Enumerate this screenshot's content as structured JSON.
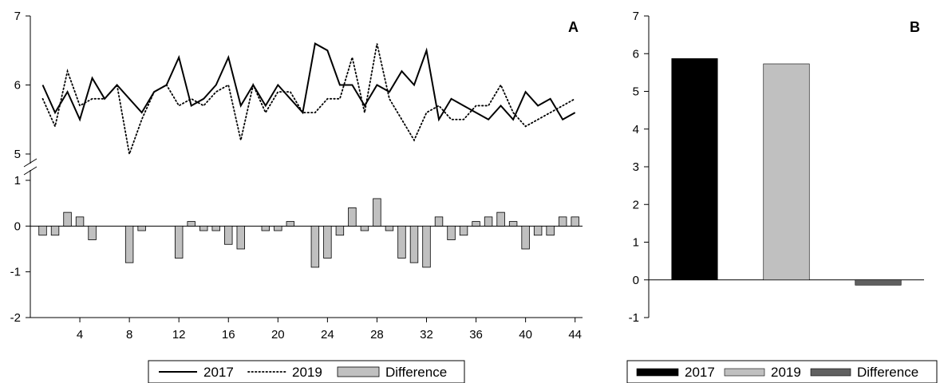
{
  "chart_data": [
    {
      "panel_label": "A",
      "type": "line+bar",
      "x": [
        1,
        2,
        3,
        4,
        5,
        6,
        7,
        8,
        9,
        10,
        11,
        12,
        13,
        14,
        15,
        16,
        17,
        18,
        19,
        20,
        21,
        22,
        23,
        24,
        25,
        26,
        27,
        28,
        29,
        30,
        31,
        32,
        33,
        34,
        35,
        36,
        37,
        38,
        39,
        40,
        41,
        42,
        43,
        44
      ],
      "xticks": [
        4,
        8,
        12,
        16,
        20,
        24,
        28,
        32,
        36,
        40,
        44
      ],
      "xlim": [
        0,
        44.6
      ],
      "upper_axis": {
        "ylim": [
          5,
          7
        ],
        "yticks": [
          5,
          6,
          7
        ]
      },
      "lower_axis": {
        "ylim": [
          -2,
          1
        ],
        "yticks": [
          -2,
          -1,
          0,
          1
        ]
      },
      "axis_break": true,
      "series": [
        {
          "name": "2017",
          "type": "line",
          "style": "solid",
          "values": [
            6.0,
            5.6,
            5.9,
            5.5,
            6.1,
            5.8,
            6.0,
            5.8,
            5.6,
            5.9,
            6.0,
            6.4,
            5.7,
            5.8,
            6.0,
            6.4,
            5.7,
            6.0,
            5.7,
            6.0,
            5.8,
            5.6,
            6.6,
            6.5,
            6.0,
            6.0,
            5.7,
            6.0,
            5.9,
            6.2,
            6.0,
            6.5,
            5.5,
            5.8,
            5.7,
            5.6,
            5.5,
            5.7,
            5.5,
            5.9,
            5.7,
            5.8,
            5.5,
            5.6
          ]
        },
        {
          "name": "2019",
          "type": "line",
          "style": "dotted",
          "values": [
            5.8,
            5.4,
            6.2,
            5.7,
            5.8,
            5.8,
            6.0,
            5.0,
            5.5,
            5.9,
            6.0,
            5.7,
            5.8,
            5.7,
            5.9,
            6.0,
            5.2,
            6.0,
            5.6,
            5.9,
            5.9,
            5.6,
            5.6,
            5.8,
            5.8,
            6.4,
            5.6,
            6.6,
            5.8,
            5.5,
            5.2,
            5.6,
            5.7,
            5.5,
            5.5,
            5.7,
            5.7,
            6.0,
            5.6,
            5.4,
            5.5,
            5.6,
            5.7,
            5.8
          ]
        },
        {
          "name": "Difference",
          "type": "bar",
          "values": [
            -0.2,
            -0.2,
            0.3,
            0.2,
            -0.3,
            0,
            0,
            -0.8,
            -0.1,
            0,
            0,
            -0.7,
            0.1,
            -0.1,
            -0.1,
            -0.4,
            -0.5,
            0,
            -0.1,
            -0.1,
            0.1,
            0,
            -0.9,
            -0.7,
            -0.2,
            0.4,
            -0.1,
            0.6,
            -0.1,
            -0.7,
            -0.8,
            -0.9,
            0.2,
            -0.3,
            -0.2,
            0.1,
            0.2,
            0.3,
            0.1,
            -0.5,
            -0.2,
            -0.2,
            0.2,
            0.2
          ]
        }
      ],
      "legend": {
        "position": "bottom",
        "entries": [
          "2017",
          "2019",
          "Difference"
        ]
      }
    },
    {
      "panel_label": "B",
      "type": "bar",
      "categories": [
        "2017",
        "2019",
        "Difference"
      ],
      "values": [
        5.87,
        5.73,
        -0.14
      ],
      "colors": [
        "#000000",
        "#c0c0c0",
        "#606060"
      ],
      "ylim": [
        -1,
        7
      ],
      "yticks": [
        -1,
        0,
        1,
        2,
        3,
        4,
        5,
        6,
        7
      ],
      "legend": {
        "position": "bottom",
        "entries": [
          "2017",
          "2019",
          "Difference"
        ]
      }
    }
  ]
}
